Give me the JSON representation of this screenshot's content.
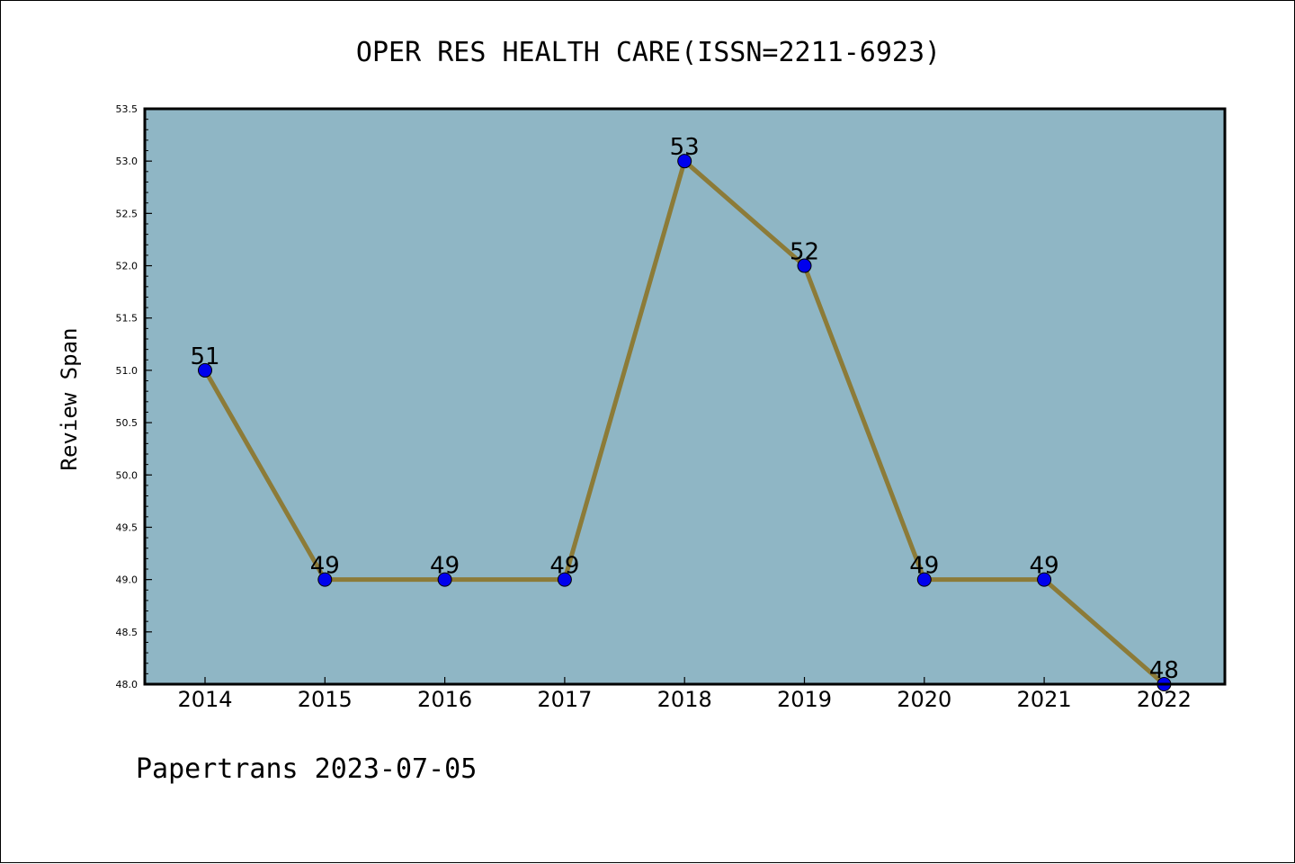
{
  "chart_data": {
    "type": "line",
    "title": "OPER RES HEALTH CARE(ISSN=2211-6923)",
    "ylabel": "Review Span",
    "xlabel": "",
    "categories": [
      "2014",
      "2015",
      "2016",
      "2017",
      "2018",
      "2019",
      "2020",
      "2021",
      "2022"
    ],
    "series": [
      {
        "values": [
          51,
          49,
          49,
          49,
          53,
          52,
          49,
          49,
          48
        ]
      }
    ],
    "data_labels": [
      "51",
      "49",
      "49",
      "49",
      "53",
      "52",
      "49",
      "49",
      "48"
    ],
    "ylim": [
      48.0,
      53.5
    ],
    "yticks": [
      "48.0",
      "48.5",
      "49.0",
      "49.5",
      "50.0",
      "50.5",
      "51.0",
      "51.5",
      "52.0",
      "52.5",
      "53.0",
      "53.5"
    ],
    "grid": false,
    "colors": {
      "plot_background": "#8fb6c5",
      "line": "#8c7b38",
      "marker": "#0000ee"
    }
  },
  "footer": "Papertrans 2023-07-05"
}
